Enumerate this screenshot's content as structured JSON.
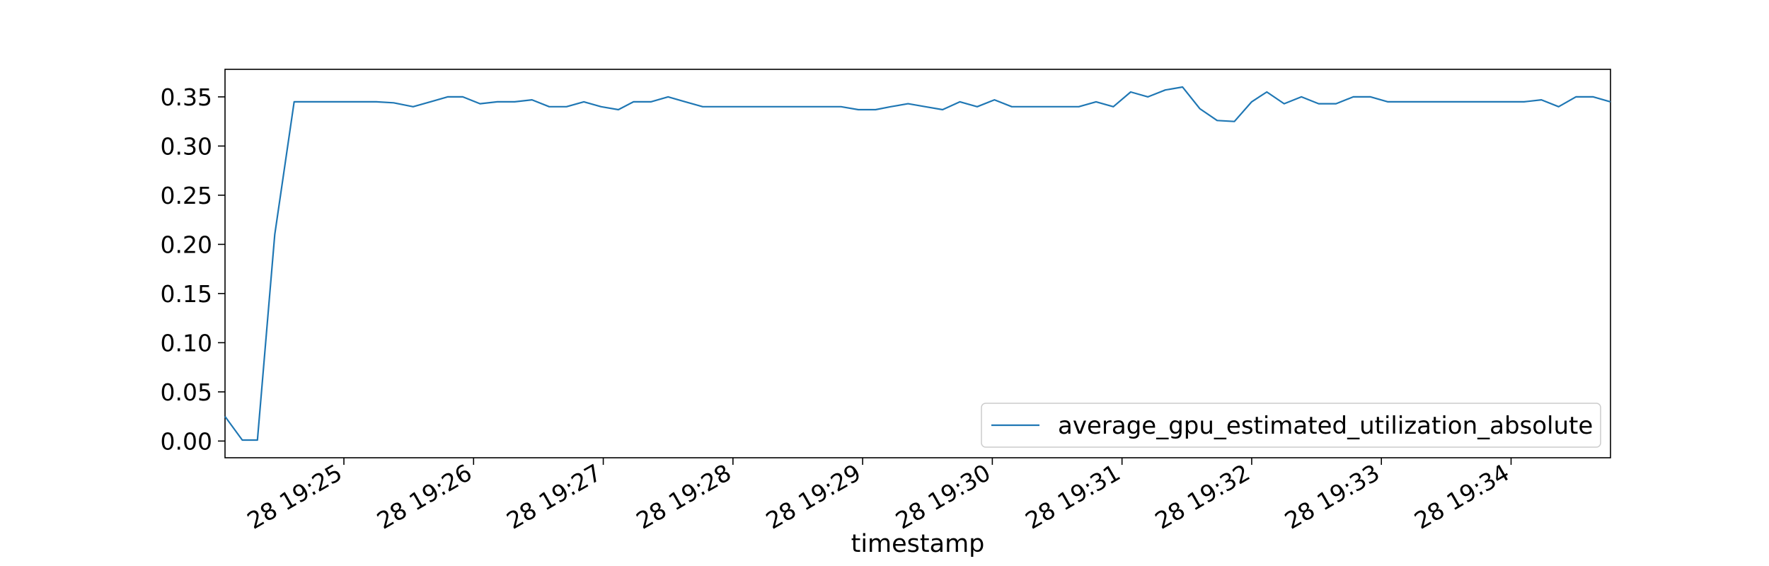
{
  "chart_data": {
    "type": "line",
    "title": "",
    "xlabel": "timestamp",
    "ylabel": "",
    "x_tick_labels": [
      "28 19:25",
      "28 19:26",
      "28 19:27",
      "28 19:28",
      "28 19:29",
      "28 19:30",
      "28 19:31",
      "28 19:32",
      "28 19:33",
      "28 19:34"
    ],
    "y_tick_labels": [
      "0.00",
      "0.05",
      "0.10",
      "0.15",
      "0.20",
      "0.25",
      "0.30",
      "0.35"
    ],
    "y_ticks": [
      0.0,
      0.05,
      0.1,
      0.15,
      0.2,
      0.25,
      0.3,
      0.35
    ],
    "ylim": [
      -0.017,
      0.378
    ],
    "legend_position": "lower right",
    "grid": false,
    "colors": {
      "series": "#1f77b4",
      "axes": "#000000"
    },
    "series": [
      {
        "name": "average_gpu_estimated_utilization_absolute",
        "points": [
          [
            "19:24:05",
            0.025
          ],
          [
            "19:24:13",
            0.001
          ],
          [
            "19:24:20",
            0.001
          ],
          [
            "19:24:28",
            0.21
          ],
          [
            "19:24:37",
            0.345
          ],
          [
            "19:24:45",
            0.345
          ],
          [
            "19:24:52",
            0.345
          ],
          [
            "19:25:00",
            0.345
          ],
          [
            "19:25:08",
            0.345
          ],
          [
            "19:25:15",
            0.345
          ],
          [
            "19:25:23",
            0.344
          ],
          [
            "19:25:32",
            0.34
          ],
          [
            "19:25:40",
            0.345
          ],
          [
            "19:25:48",
            0.35
          ],
          [
            "19:25:55",
            0.35
          ],
          [
            "19:26:03",
            0.343
          ],
          [
            "19:26:11",
            0.345
          ],
          [
            "19:26:19",
            0.345
          ],
          [
            "19:26:27",
            0.347
          ],
          [
            "19:26:35",
            0.34
          ],
          [
            "19:26:43",
            0.34
          ],
          [
            "19:26:51",
            0.345
          ],
          [
            "19:26:59",
            0.34
          ],
          [
            "19:27:07",
            0.337
          ],
          [
            "19:27:14",
            0.345
          ],
          [
            "19:27:22",
            0.345
          ],
          [
            "19:27:30",
            0.35
          ],
          [
            "19:27:38",
            0.345
          ],
          [
            "19:27:46",
            0.34
          ],
          [
            "19:27:54",
            0.34
          ],
          [
            "19:28:02",
            0.34
          ],
          [
            "19:28:10",
            0.34
          ],
          [
            "19:28:18",
            0.34
          ],
          [
            "19:28:26",
            0.34
          ],
          [
            "19:28:34",
            0.34
          ],
          [
            "19:28:42",
            0.34
          ],
          [
            "19:28:50",
            0.34
          ],
          [
            "19:28:58",
            0.337
          ],
          [
            "19:29:06",
            0.337
          ],
          [
            "19:29:13",
            0.34
          ],
          [
            "19:29:21",
            0.343
          ],
          [
            "19:29:29",
            0.34
          ],
          [
            "19:29:37",
            0.337
          ],
          [
            "19:29:45",
            0.345
          ],
          [
            "19:29:53",
            0.34
          ],
          [
            "19:30:01",
            0.347
          ],
          [
            "19:30:09",
            0.34
          ],
          [
            "19:30:17",
            0.34
          ],
          [
            "19:30:25",
            0.34
          ],
          [
            "19:30:33",
            0.34
          ],
          [
            "19:30:40",
            0.34
          ],
          [
            "19:30:48",
            0.345
          ],
          [
            "19:30:56",
            0.34
          ],
          [
            "19:31:04",
            0.355
          ],
          [
            "19:31:12",
            0.35
          ],
          [
            "19:31:20",
            0.357
          ],
          [
            "19:31:28",
            0.36
          ],
          [
            "19:31:36",
            0.338
          ],
          [
            "19:31:44",
            0.326
          ],
          [
            "19:31:52",
            0.325
          ],
          [
            "19:32:00",
            0.345
          ],
          [
            "19:32:07",
            0.355
          ],
          [
            "19:32:15",
            0.343
          ],
          [
            "19:32:23",
            0.35
          ],
          [
            "19:32:31",
            0.343
          ],
          [
            "19:32:39",
            0.343
          ],
          [
            "19:32:47",
            0.35
          ],
          [
            "19:32:55",
            0.35
          ],
          [
            "19:33:03",
            0.345
          ],
          [
            "19:33:11",
            0.345
          ],
          [
            "19:33:19",
            0.345
          ],
          [
            "19:33:27",
            0.345
          ],
          [
            "19:33:34",
            0.345
          ],
          [
            "19:33:42",
            0.345
          ],
          [
            "19:33:50",
            0.345
          ],
          [
            "19:33:58",
            0.345
          ],
          [
            "19:34:06",
            0.345
          ],
          [
            "19:34:14",
            0.347
          ],
          [
            "19:34:22",
            0.34
          ],
          [
            "19:34:30",
            0.35
          ],
          [
            "19:34:38",
            0.35
          ],
          [
            "19:34:46",
            0.345
          ]
        ]
      }
    ]
  }
}
